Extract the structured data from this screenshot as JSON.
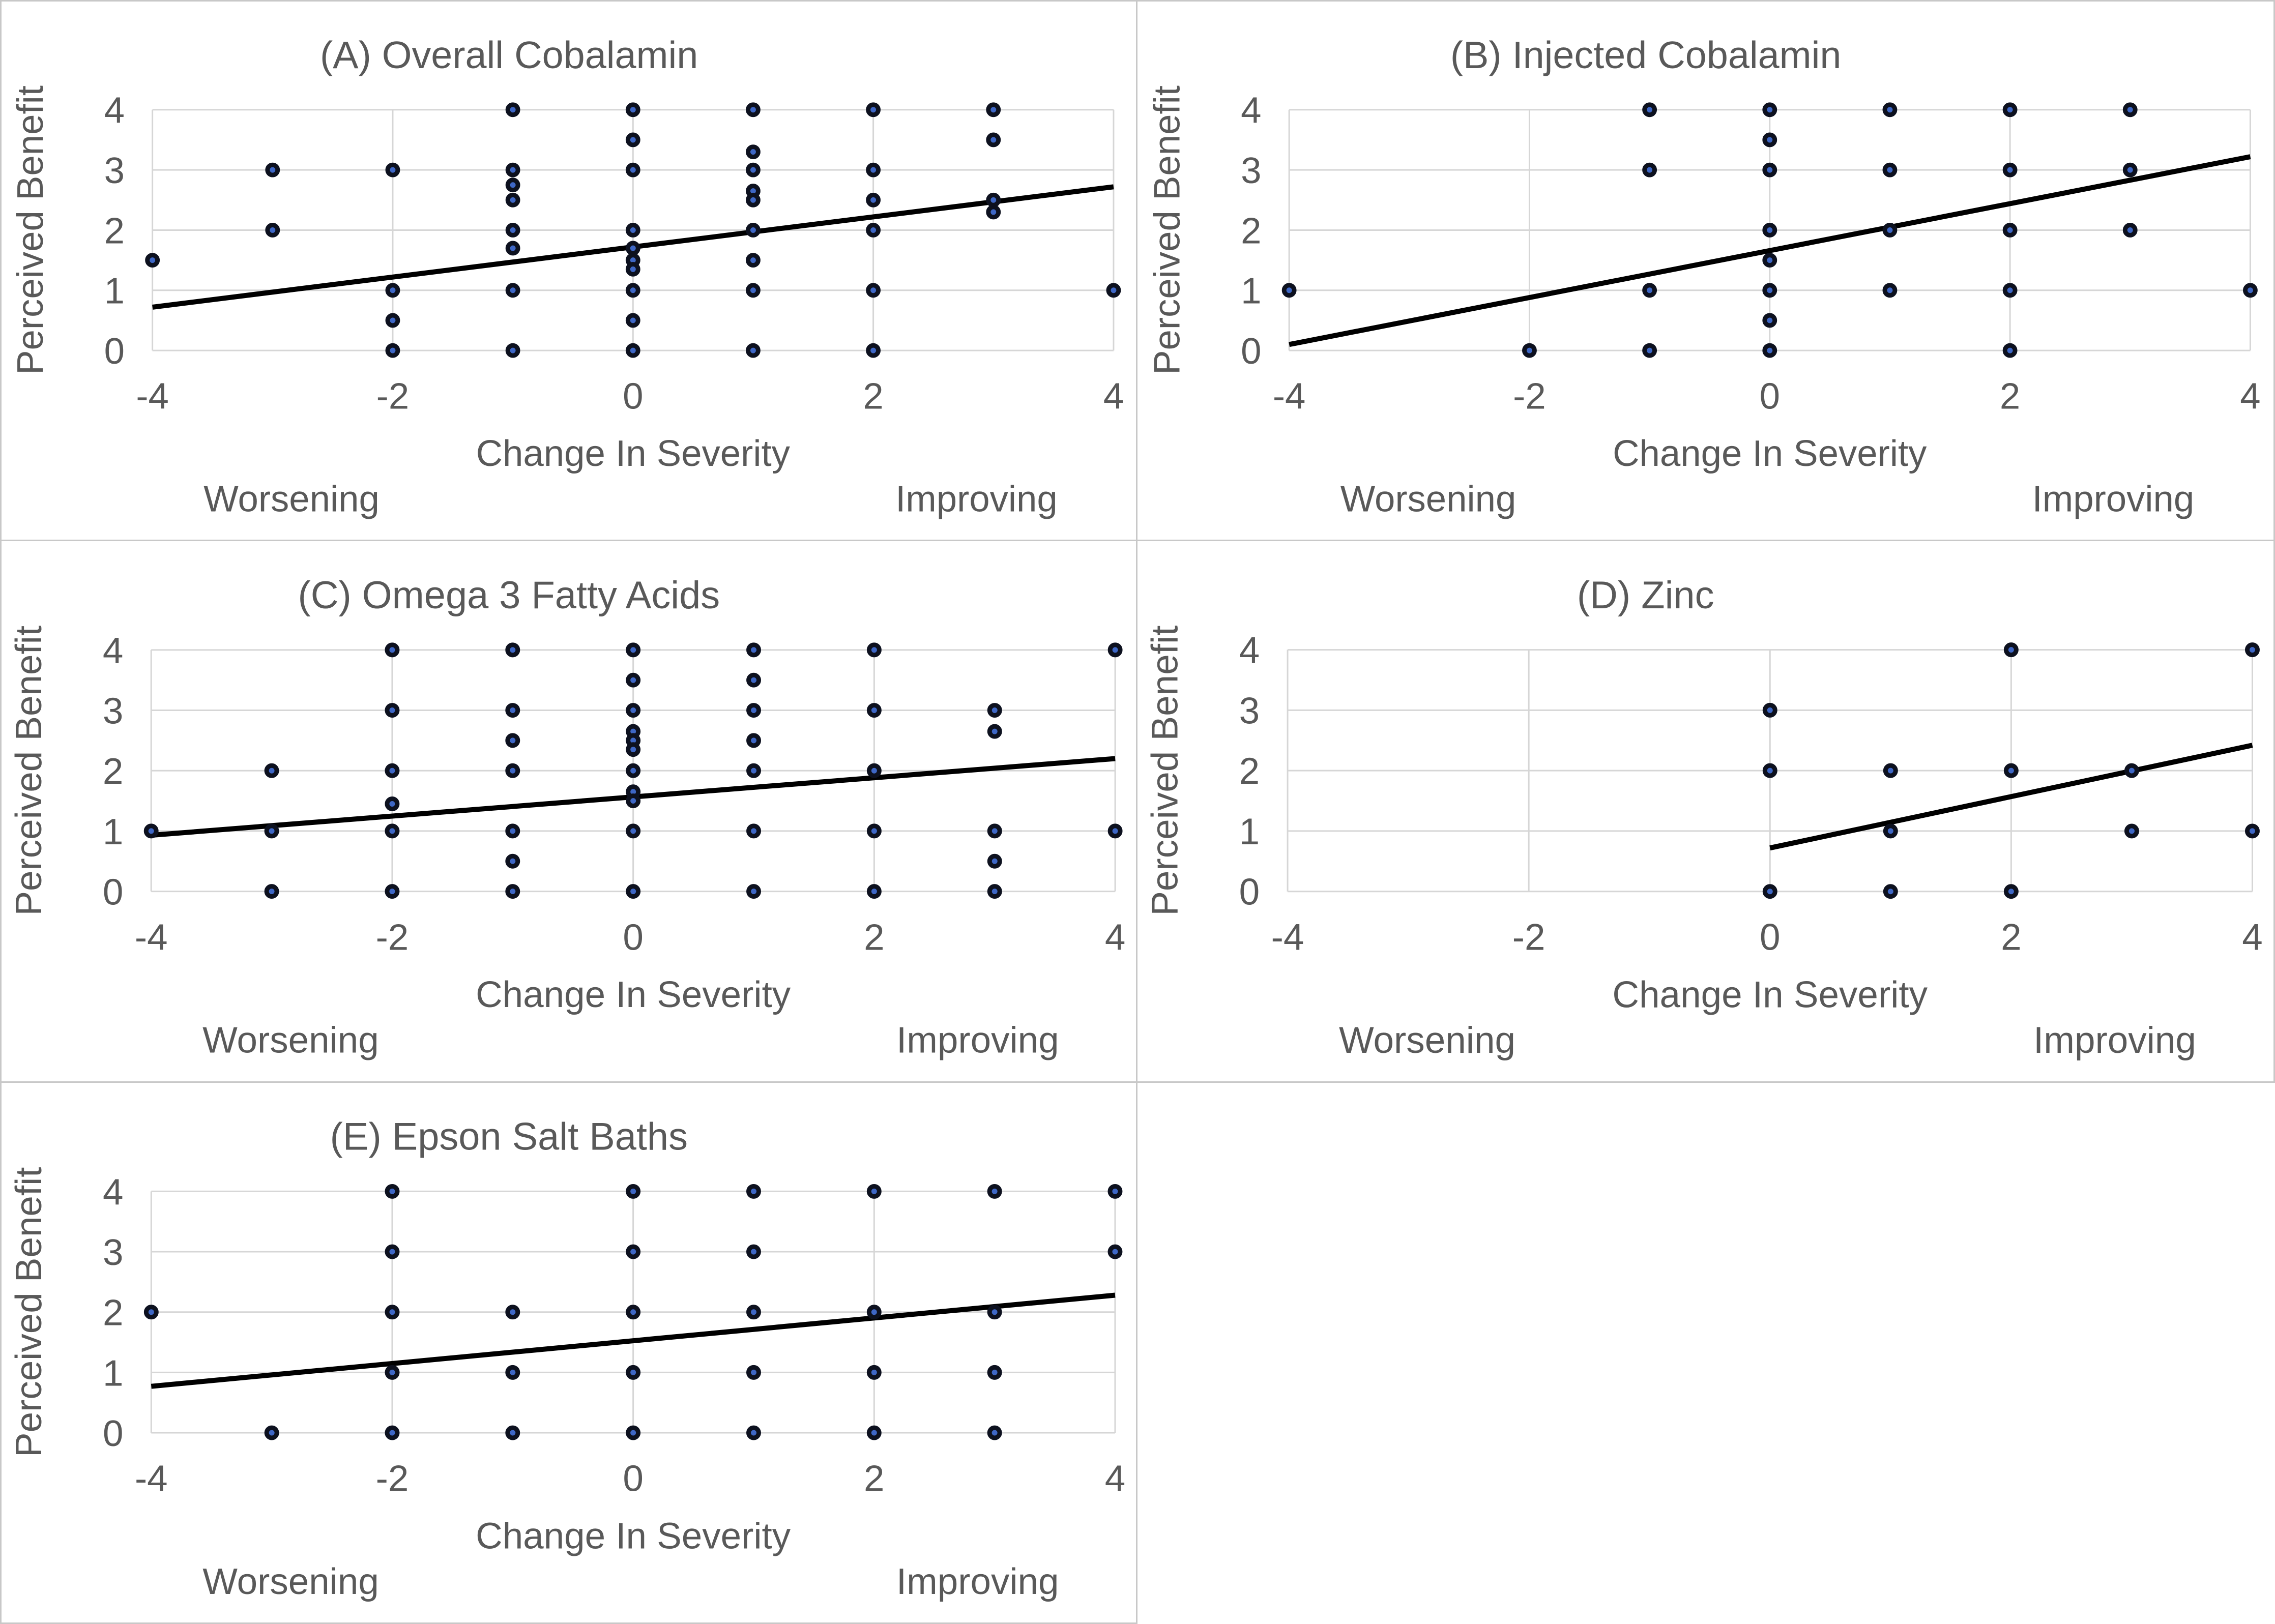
{
  "figure": {
    "description": "Five scatter plots of perceived benefit versus change in severity for different treatments",
    "grid": {
      "rows": 3,
      "cols": 2,
      "empty_cell": "bottom-right"
    }
  },
  "colors": {
    "marker_fill": "#3e67c6",
    "marker_ring": "#0d111f",
    "trend_line": "#000000",
    "gridline": "#d6d6d6",
    "panel_border": "#c8c8c8",
    "text": "#595959"
  },
  "axes": {
    "xlabel": "Change In Severity",
    "ylabel": "Perceived Benefit",
    "left_annotation": "Worsening",
    "right_annotation": "Improving",
    "x_ticks": [
      -4,
      -2,
      0,
      2,
      4
    ],
    "y_ticks": [
      0,
      1,
      2,
      3,
      4
    ],
    "xlim": [
      -4,
      4
    ],
    "ylim": [
      0,
      4
    ],
    "grid": "on",
    "vertical_gridlines_at": [
      -4,
      -2,
      0,
      2,
      4
    ]
  },
  "chart_data": [
    {
      "type": "scatter",
      "title": "(A) Overall Cobalamin",
      "xlabel": "Change In Severity",
      "ylabel": "Perceived Benefit",
      "xlim": [
        -4,
        4
      ],
      "ylim": [
        0,
        4
      ],
      "annotations": [
        "Worsening",
        "Improving"
      ],
      "points": [
        [
          -4,
          1.5
        ],
        [
          -3,
          3
        ],
        [
          -3,
          2
        ],
        [
          -2,
          3
        ],
        [
          -2,
          1
        ],
        [
          -2,
          0.5
        ],
        [
          -2,
          0
        ],
        [
          -1,
          4
        ],
        [
          -1,
          3
        ],
        [
          -1,
          2.75
        ],
        [
          -1,
          2.5
        ],
        [
          -1,
          2
        ],
        [
          -1,
          1.7
        ],
        [
          -1,
          1
        ],
        [
          -1,
          0
        ],
        [
          0,
          4
        ],
        [
          0,
          3.5
        ],
        [
          0,
          3
        ],
        [
          0,
          2
        ],
        [
          0,
          1.7
        ],
        [
          0,
          1.5
        ],
        [
          0,
          1.35
        ],
        [
          0,
          1
        ],
        [
          0,
          0.5
        ],
        [
          0,
          0
        ],
        [
          1,
          4
        ],
        [
          1,
          3.3
        ],
        [
          1,
          3
        ],
        [
          1,
          2.65
        ],
        [
          1,
          2.5
        ],
        [
          1,
          2
        ],
        [
          1,
          1.5
        ],
        [
          1,
          1
        ],
        [
          1,
          0
        ],
        [
          2,
          4
        ],
        [
          2,
          3
        ],
        [
          2,
          2.5
        ],
        [
          2,
          2
        ],
        [
          2,
          1
        ],
        [
          2,
          0
        ],
        [
          3,
          4
        ],
        [
          3,
          3.5
        ],
        [
          3,
          2.5
        ],
        [
          3,
          2.3
        ],
        [
          4,
          1
        ]
      ],
      "trend": {
        "x": [
          -4,
          4
        ],
        "y": [
          0.72,
          2.72
        ]
      }
    },
    {
      "type": "scatter",
      "title": "(B) Injected Cobalamin",
      "xlabel": "Change In Severity",
      "ylabel": "Perceived Benefit",
      "xlim": [
        -4,
        4
      ],
      "ylim": [
        0,
        4
      ],
      "annotations": [
        "Worsening",
        "Improving"
      ],
      "points": [
        [
          -4,
          1
        ],
        [
          -2,
          0
        ],
        [
          -1,
          4
        ],
        [
          -1,
          3
        ],
        [
          -1,
          1
        ],
        [
          -1,
          0
        ],
        [
          0,
          4
        ],
        [
          0,
          3.5
        ],
        [
          0,
          3
        ],
        [
          0,
          2
        ],
        [
          0,
          1.5
        ],
        [
          0,
          1
        ],
        [
          0,
          0.5
        ],
        [
          0,
          0
        ],
        [
          1,
          4
        ],
        [
          1,
          3
        ],
        [
          1,
          2
        ],
        [
          1,
          1
        ],
        [
          2,
          4
        ],
        [
          2,
          3
        ],
        [
          2,
          2
        ],
        [
          2,
          1
        ],
        [
          2,
          0
        ],
        [
          3,
          4
        ],
        [
          3,
          3
        ],
        [
          3,
          2
        ],
        [
          4,
          1
        ]
      ],
      "trend": {
        "x": [
          -4,
          4
        ],
        "y": [
          0.1,
          3.22
        ]
      }
    },
    {
      "type": "scatter",
      "title": "(C) Omega 3 Fatty Acids",
      "xlabel": "Change In Severity",
      "ylabel": "Perceived Benefit",
      "xlim": [
        -4,
        4
      ],
      "ylim": [
        0,
        4
      ],
      "annotations": [
        "Worsening",
        "Improving"
      ],
      "points": [
        [
          -4,
          1
        ],
        [
          -3,
          2
        ],
        [
          -3,
          1
        ],
        [
          -3,
          0
        ],
        [
          -2,
          4
        ],
        [
          -2,
          3
        ],
        [
          -2,
          2
        ],
        [
          -2,
          1.45
        ],
        [
          -2,
          1
        ],
        [
          -2,
          0
        ],
        [
          -1,
          4
        ],
        [
          -1,
          3
        ],
        [
          -1,
          2.5
        ],
        [
          -1,
          2
        ],
        [
          -1,
          1
        ],
        [
          -1,
          0.5
        ],
        [
          -1,
          0
        ],
        [
          0,
          4
        ],
        [
          0,
          3.5
        ],
        [
          0,
          3
        ],
        [
          0,
          2.65
        ],
        [
          0,
          2.5
        ],
        [
          0,
          2.35
        ],
        [
          0,
          2
        ],
        [
          0,
          1.65
        ],
        [
          0,
          1.5
        ],
        [
          0,
          1
        ],
        [
          0,
          0
        ],
        [
          1,
          4
        ],
        [
          1,
          3.5
        ],
        [
          1,
          3
        ],
        [
          1,
          2.5
        ],
        [
          1,
          2
        ],
        [
          1,
          1
        ],
        [
          1,
          0
        ],
        [
          2,
          4
        ],
        [
          2,
          3
        ],
        [
          2,
          2
        ],
        [
          2,
          1
        ],
        [
          2,
          0
        ],
        [
          3,
          3
        ],
        [
          3,
          2.65
        ],
        [
          3,
          1
        ],
        [
          3,
          0.5
        ],
        [
          3,
          0
        ],
        [
          4,
          4
        ],
        [
          4,
          1
        ]
      ],
      "trend": {
        "x": [
          -4,
          4
        ],
        "y": [
          0.93,
          2.2
        ]
      }
    },
    {
      "type": "scatter",
      "title": "(D) Zinc",
      "xlabel": "Change In Severity",
      "ylabel": "Perceived Benefit",
      "xlim": [
        -4,
        4
      ],
      "ylim": [
        0,
        4
      ],
      "annotations": [
        "Worsening",
        "Improving"
      ],
      "points": [
        [
          0,
          3
        ],
        [
          0,
          2
        ],
        [
          0,
          0
        ],
        [
          1,
          2
        ],
        [
          1,
          1
        ],
        [
          1,
          0
        ],
        [
          2,
          4
        ],
        [
          2,
          2
        ],
        [
          2,
          0
        ],
        [
          3,
          2
        ],
        [
          3,
          1
        ],
        [
          4,
          4
        ],
        [
          4,
          1
        ]
      ],
      "trend": {
        "x": [
          0,
          4
        ],
        "y": [
          0.72,
          2.42
        ]
      }
    },
    {
      "type": "scatter",
      "title": "(E) Epson Salt Baths",
      "xlabel": "Change In Severity",
      "ylabel": "Perceived Benefit",
      "xlim": [
        -4,
        4
      ],
      "ylim": [
        0,
        4
      ],
      "annotations": [
        "Worsening",
        "Improving"
      ],
      "points": [
        [
          -4,
          2
        ],
        [
          -3,
          0
        ],
        [
          -2,
          4
        ],
        [
          -2,
          3
        ],
        [
          -2,
          2
        ],
        [
          -2,
          1
        ],
        [
          -2,
          0
        ],
        [
          -1,
          2
        ],
        [
          -1,
          1
        ],
        [
          -1,
          0
        ],
        [
          0,
          4
        ],
        [
          0,
          3
        ],
        [
          0,
          2
        ],
        [
          0,
          1
        ],
        [
          0,
          0
        ],
        [
          1,
          4
        ],
        [
          1,
          3
        ],
        [
          1,
          2
        ],
        [
          1,
          1
        ],
        [
          1,
          0
        ],
        [
          2,
          4
        ],
        [
          2,
          2
        ],
        [
          2,
          1
        ],
        [
          2,
          0
        ],
        [
          3,
          4
        ],
        [
          3,
          2
        ],
        [
          3,
          1
        ],
        [
          3,
          0
        ],
        [
          4,
          4
        ],
        [
          4,
          3
        ]
      ],
      "trend": {
        "x": [
          -4,
          4
        ],
        "y": [
          0.77,
          2.28
        ]
      }
    }
  ]
}
